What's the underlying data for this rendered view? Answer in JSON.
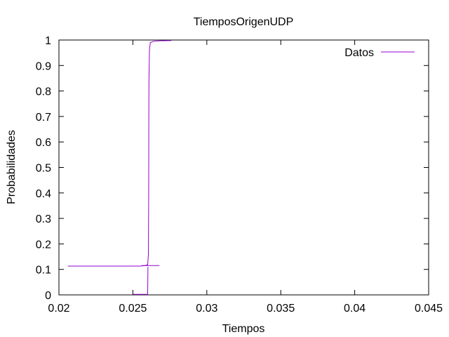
{
  "chart_data": {
    "type": "line",
    "title": "TiemposOrigenUDP",
    "xlabel": "Tiempos",
    "ylabel": "Probabilidades",
    "xlim": [
      0.02,
      0.045
    ],
    "ylim": [
      0,
      1
    ],
    "xticks": [
      "0.02",
      "0.025",
      "0.03",
      "0.035",
      "0.04",
      "0.045"
    ],
    "yticks": [
      "0",
      "0.1",
      "0.2",
      "0.3",
      "0.4",
      "0.5",
      "0.6",
      "0.7",
      "0.8",
      "0.9",
      "1"
    ],
    "grid": false,
    "legend_position": "top-right",
    "series": [
      {
        "name": "Datos",
        "color": "#9400d3",
        "points": [
          [
            0.0206,
            0.113
          ],
          [
            0.0255,
            0.113
          ],
          [
            0.0258,
            0.115
          ],
          [
            0.026,
            0.118
          ],
          [
            0.02605,
            0.16
          ],
          [
            0.02607,
            0.4
          ],
          [
            0.02608,
            0.75
          ],
          [
            0.02609,
            0.85
          ],
          [
            0.02612,
            0.96
          ],
          [
            0.02618,
            0.99
          ],
          [
            0.0264,
            0.995
          ],
          [
            0.0268,
            0.997
          ],
          [
            0.0276,
            0.998
          ]
        ],
        "extra_segments": [
          [
            [
              0.025,
              0.002
            ],
            [
              0.026,
              0.002
            ]
          ],
          [
            [
              0.026,
              0.002
            ],
            [
              0.02602,
              0.11
            ]
          ],
          [
            [
              0.0256,
              0.115
            ],
            [
              0.0268,
              0.115
            ]
          ]
        ]
      }
    ]
  }
}
